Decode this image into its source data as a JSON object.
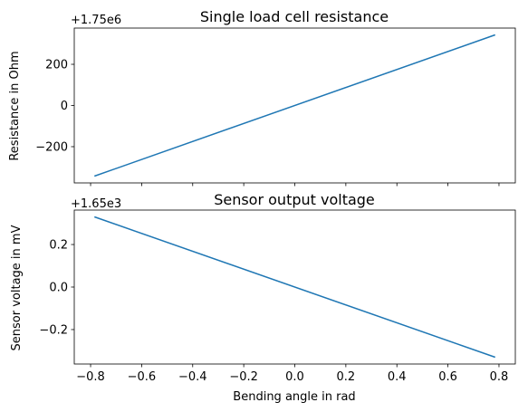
{
  "chart_data": [
    {
      "type": "line",
      "title": "Single load cell resistance",
      "xlabel": "",
      "ylabel": "Resistance in Ohm",
      "offset_text": "+1.75e6",
      "xlim": [
        -0.864,
        0.864
      ],
      "ylim": [
        -376,
        376
      ],
      "xticks": [
        -0.8,
        -0.6,
        -0.4,
        -0.2,
        0.0,
        0.2,
        0.4,
        0.6,
        0.8
      ],
      "xtick_labels_shown": false,
      "yticks": [
        -200,
        0,
        200
      ],
      "ytick_labels": [
        "−200",
        "0",
        "200"
      ],
      "line_color": "#1f77b4",
      "series": [
        {
          "x": [
            -0.785,
            0.785
          ],
          "y": [
            -343,
            343
          ]
        }
      ]
    },
    {
      "type": "line",
      "title": "Sensor output voltage",
      "xlabel": "Bending angle in rad",
      "ylabel": "Sensor voltage in mV",
      "offset_text": "+1.65e3",
      "xlim": [
        -0.864,
        0.864
      ],
      "ylim": [
        -0.362,
        0.362
      ],
      "xticks": [
        -0.8,
        -0.6,
        -0.4,
        -0.2,
        0.0,
        0.2,
        0.4,
        0.6,
        0.8
      ],
      "xtick_labels": [
        "−0.8",
        "−0.6",
        "−0.4",
        "−0.2",
        "0.0",
        "0.2",
        "0.4",
        "0.6",
        "0.8"
      ],
      "yticks": [
        -0.2,
        0.0,
        0.2
      ],
      "ytick_labels": [
        "−0.2",
        "0.0",
        "0.2"
      ],
      "line_color": "#1f77b4",
      "series": [
        {
          "x": [
            -0.785,
            0.785
          ],
          "y": [
            0.33,
            -0.33
          ]
        }
      ]
    }
  ]
}
